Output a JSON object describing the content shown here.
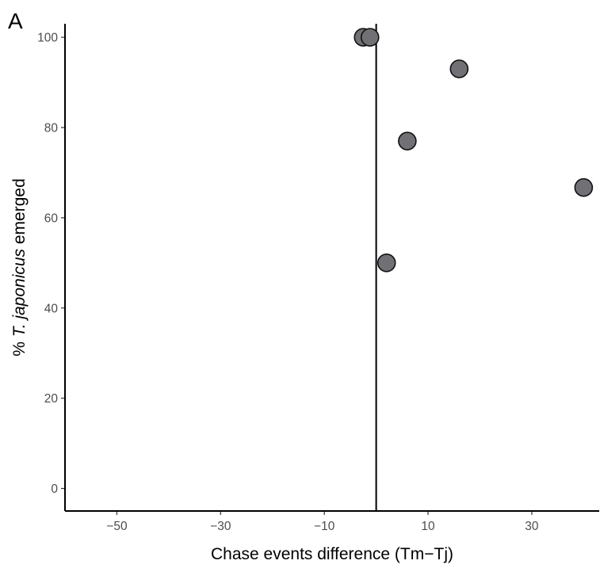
{
  "panel_label": "A",
  "chart_data": {
    "type": "scatter",
    "xlabel": "Chase events difference (Tm−Tj)",
    "ylabel_prefix": "% ",
    "ylabel_italic": "T. japonicus",
    "ylabel_suffix": " emerged",
    "xlim": [
      -60,
      43
    ],
    "ylim": [
      -5,
      103
    ],
    "x_ticks": [
      -50,
      -30,
      -10,
      10,
      30
    ],
    "x_tick_labels": [
      "−50",
      "−30",
      "−10",
      "10",
      "30"
    ],
    "y_ticks": [
      0,
      20,
      40,
      60,
      80,
      100
    ],
    "y_tick_labels": [
      "0",
      "20",
      "40",
      "60",
      "80",
      "100"
    ],
    "reference_line_x": 0,
    "grid": false,
    "legend": "none",
    "point_color": "#707075",
    "point_outline_color": "#111111",
    "points": [
      {
        "x": -2.5,
        "y": 100
      },
      {
        "x": -1.2,
        "y": 100
      },
      {
        "x": 2,
        "y": 50
      },
      {
        "x": 6,
        "y": 77
      },
      {
        "x": 16,
        "y": 93
      },
      {
        "x": 40,
        "y": 66.7
      }
    ]
  }
}
